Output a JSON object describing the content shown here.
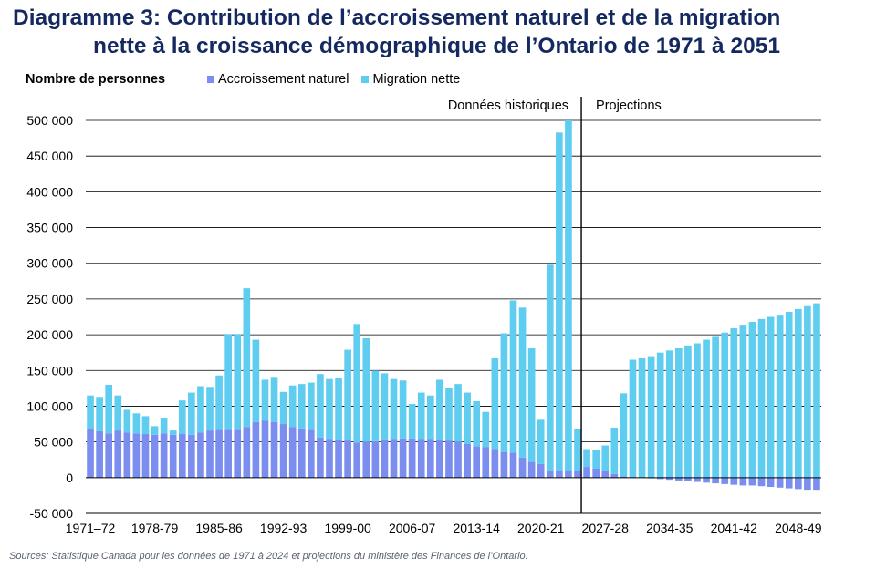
{
  "title": {
    "line1": "Diagramme 3: Contribution de l’accroissement naturel et de la migration",
    "line2": "nette à la croissance démographique de l’Ontario de 1971 à 2051"
  },
  "sources": "Sources: Statistique Canada pour les données de 1971 à 2024 et projections du ministère des Finances de l’Ontario.",
  "chart_data": {
    "type": "bar",
    "stacked": true,
    "ylabel": "Nombre de personnes",
    "ylim": [
      -50000,
      500000
    ],
    "yticks": [
      -50000,
      0,
      50000,
      100000,
      150000,
      200000,
      250000,
      300000,
      350000,
      400000,
      450000,
      500000
    ],
    "ytick_labels": [
      "-50 000",
      "0",
      "50 000",
      "100 000",
      "150 000",
      "200 000",
      "250 000",
      "300 000",
      "350 000",
      "400 000",
      "450 000",
      "500 000"
    ],
    "grid": true,
    "legend_position": "top",
    "colors": {
      "natural": "#7b8ef0",
      "migration": "#5fcdf0",
      "grid": "#000000",
      "axis": "#000000"
    },
    "start_year": 1971,
    "x_tick_labels": [
      {
        "index": 0,
        "label": "1971–72"
      },
      {
        "index": 7,
        "label": "1978-79"
      },
      {
        "index": 14,
        "label": "1985-86"
      },
      {
        "index": 21,
        "label": "1992-93"
      },
      {
        "index": 28,
        "label": "1999-00"
      },
      {
        "index": 35,
        "label": "2006-07"
      },
      {
        "index": 42,
        "label": "2013-14"
      },
      {
        "index": 49,
        "label": "2020-21"
      },
      {
        "index": 56,
        "label": "2027-28"
      },
      {
        "index": 63,
        "label": "2034-35"
      },
      {
        "index": 70,
        "label": "2041-42"
      },
      {
        "index": 77,
        "label": "2048-49"
      }
    ],
    "annotations": {
      "historical": "Données historiques",
      "projections": "Projections",
      "divider_after_index": 53
    },
    "series": [
      {
        "name": "Accroissement naturel",
        "values": [
          68000,
          65000,
          62000,
          66000,
          63000,
          62000,
          61000,
          60000,
          62000,
          60000,
          61000,
          60000,
          63000,
          66000,
          67000,
          67000,
          67000,
          71000,
          78000,
          80000,
          78000,
          75000,
          71000,
          69000,
          67000,
          56000,
          54000,
          53000,
          52000,
          49000,
          50000,
          51000,
          53000,
          54000,
          55000,
          55000,
          54000,
          54000,
          53000,
          52000,
          50000,
          47000,
          44000,
          43000,
          40000,
          36000,
          35000,
          28000,
          22000,
          19000,
          10000,
          10000,
          9000,
          9000,
          15000,
          13000,
          9000,
          5000,
          2000,
          1000,
          0,
          -1000,
          -2000,
          -3000,
          -4000,
          -5000,
          -6000,
          -7000,
          -8000,
          -9000,
          -10000,
          -11000,
          -11000,
          -12000,
          -13000,
          -14000,
          -15000,
          -16000,
          -17000,
          -17000
        ]
      },
      {
        "name": "Migration nette",
        "values": [
          47000,
          48000,
          68000,
          49000,
          32000,
          28000,
          25000,
          12000,
          22000,
          6000,
          47000,
          59000,
          65000,
          61000,
          76000,
          134000,
          134000,
          194000,
          115000,
          57000,
          63000,
          45000,
          58000,
          62000,
          66000,
          89000,
          84000,
          86000,
          127000,
          166000,
          145000,
          99000,
          93000,
          84000,
          81000,
          48000,
          65000,
          61000,
          84000,
          73000,
          81000,
          72000,
          63000,
          49000,
          127000,
          166000,
          213000,
          210000,
          159000,
          62000,
          288000,
          473000,
          491000,
          59000,
          25000,
          26000,
          36000,
          65000,
          116000,
          164000,
          167000,
          170000,
          175000,
          178000,
          181000,
          185000,
          188000,
          193000,
          197000,
          203000,
          209000,
          214000,
          218000,
          222000,
          225000,
          228000,
          232000,
          236000,
          240000,
          244000
        ]
      }
    ]
  }
}
